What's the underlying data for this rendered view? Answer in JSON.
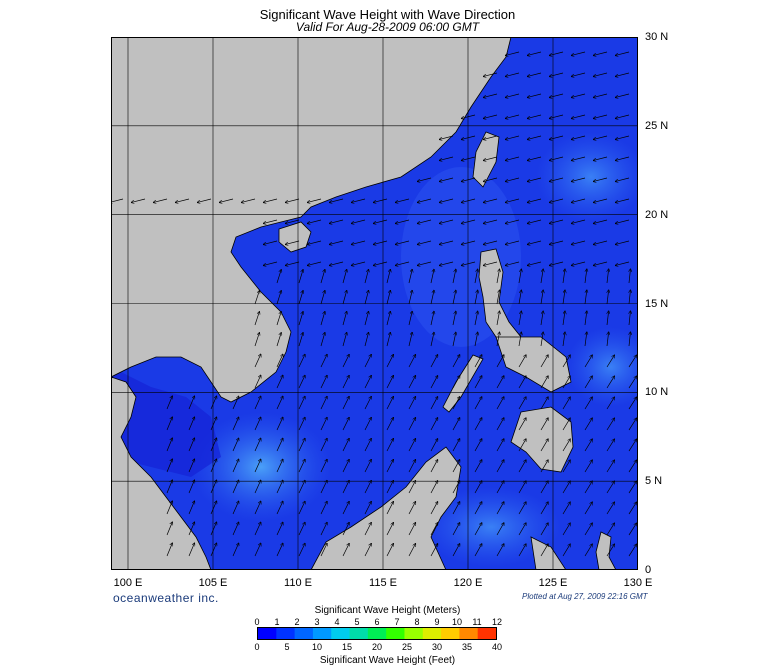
{
  "title": "Significant Wave Height with Wave Direction",
  "subtitle": "Valid For Aug-28-2009 06:00 GMT",
  "brand": "oceanweather inc.",
  "plotted": "Plotted at Aug 27, 2009 22:16 GMT",
  "x_ticks": [
    "100 E",
    "105 E",
    "110 E",
    "115 E",
    "120 E",
    "125 E",
    "130 E"
  ],
  "y_ticks": [
    "30 N",
    "25 N",
    "20 N",
    "15 N",
    "10 N",
    "5 N",
    "0"
  ],
  "legend": {
    "meters_title": "Significant Wave Height (Meters)",
    "feet_title": "Significant Wave Height (Feet)",
    "meters_ticks": [
      "0",
      "1",
      "2",
      "3",
      "4",
      "5",
      "6",
      "7",
      "8",
      "9",
      "10",
      "11",
      "12"
    ],
    "feet_ticks": [
      "0",
      "5",
      "10",
      "15",
      "20",
      "25",
      "30",
      "35",
      "40"
    ],
    "colors": [
      "#0000ff",
      "#0033ff",
      "#0066ff",
      "#0099ff",
      "#00ccee",
      "#00ddaa",
      "#00ee55",
      "#33ff00",
      "#99ff00",
      "#ddee00",
      "#ffcc00",
      "#ff8800",
      "#ff3300"
    ]
  },
  "colors": {
    "land": "#c0c0c0",
    "sea_deep": "#1a2fe0",
    "sea_mid": "#2a5cf0",
    "sea_light": "#3f8af5"
  },
  "extent": {
    "lon": [
      99,
      130
    ],
    "lat": [
      0,
      30
    ]
  }
}
